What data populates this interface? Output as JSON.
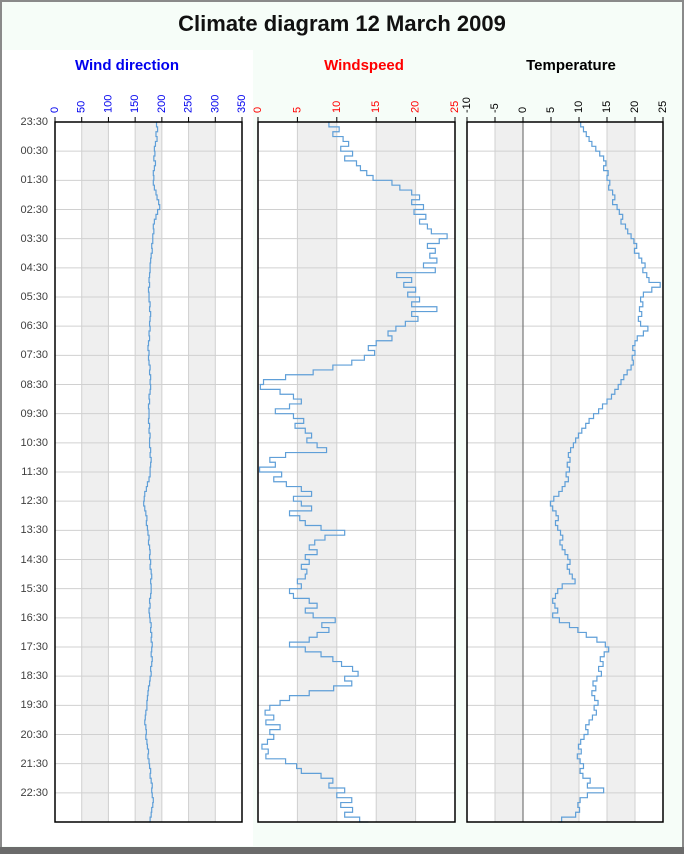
{
  "page": {
    "title": "Climate diagram 12 March 2009",
    "background_color": "#f6fdf8",
    "frame_color": "#8a8a8a",
    "bottom_bar_color": "#6b6b6b"
  },
  "style": {
    "line_color": "#5f9fd8",
    "grid_color": "#d0d0d0",
    "band_color": "#efefef",
    "plot_background": "#ffffff",
    "plot_border_color": "#000000",
    "zero_line_color": "#787878",
    "time_label_color": "#3f3f3f"
  },
  "time_axis": {
    "labels": [
      "23:30",
      "00:30",
      "01:30",
      "02:30",
      "03:30",
      "04:30",
      "05:30",
      "06:30",
      "07:30",
      "08:30",
      "09:30",
      "10:30",
      "11:30",
      "12:30",
      "13:30",
      "14:30",
      "15:30",
      "16:30",
      "17:30",
      "18:30",
      "19:30",
      "20:30",
      "21:30",
      "22:30"
    ],
    "span_hours": 24,
    "start": "23:30",
    "end": "23:30",
    "sample_interval_minutes": 10
  },
  "chart_data": [
    {
      "type": "line",
      "id": "wind-direction",
      "title": "Wind direction",
      "color": "#0000ee",
      "xlim": [
        0,
        350
      ],
      "xticks": [
        0,
        50,
        100,
        150,
        200,
        250,
        300,
        350
      ],
      "xtick_labels": [
        "0",
        "50",
        "100",
        "150",
        "200",
        "250",
        "300",
        "350"
      ],
      "zero_line": false,
      "orientation": "time-vertical",
      "values": [
        190,
        192,
        189,
        191,
        188,
        186,
        187,
        185,
        188,
        186,
        184,
        185,
        184,
        186,
        189,
        191,
        194,
        196,
        192,
        189,
        186,
        184,
        185,
        183,
        183,
        181,
        182,
        180,
        179,
        178,
        178,
        177,
        176,
        177,
        175,
        176,
        176,
        178,
        177,
        179,
        178,
        177,
        178,
        176,
        177,
        175,
        174,
        176,
        175,
        176,
        178,
        177,
        179,
        178,
        179,
        178,
        176,
        177,
        175,
        176,
        176,
        175,
        177,
        176,
        178,
        177,
        177,
        179,
        178,
        180,
        179,
        178,
        178,
        176,
        173,
        171,
        168,
        167,
        166,
        168,
        170,
        172,
        171,
        173,
        174,
        176,
        175,
        177,
        178,
        177,
        179,
        178,
        180,
        181,
        179,
        180,
        180,
        179,
        177,
        178,
        176,
        177,
        178,
        180,
        179,
        181,
        180,
        182,
        181,
        180,
        182,
        181,
        179,
        180,
        178,
        177,
        175,
        174,
        173,
        172,
        172,
        170,
        169,
        168,
        170,
        171,
        170,
        172,
        173,
        175,
        174,
        176,
        177,
        179,
        178,
        180,
        182,
        181,
        182,
        184,
        183,
        181,
        180,
        178,
        179
      ]
    },
    {
      "type": "line",
      "id": "windspeed",
      "title": "Windspeed",
      "color": "#ff0000",
      "xlim": [
        0,
        25
      ],
      "xticks": [
        0,
        5,
        10,
        15,
        20,
        25
      ],
      "xtick_labels": [
        "0",
        "5",
        "10",
        "15",
        "20",
        "25"
      ],
      "zero_line": false,
      "orientation": "time-vertical",
      "values": [
        9,
        10.3,
        9.5,
        10.8,
        11.5,
        10.5,
        12,
        11,
        12.5,
        13,
        13.8,
        14.6,
        17,
        18,
        19.5,
        20.5,
        19.5,
        21,
        19.8,
        21.3,
        20.5,
        21.5,
        22,
        24,
        23,
        21.5,
        22.5,
        21.8,
        22.7,
        21,
        22.5,
        17.6,
        19.5,
        18.5,
        20,
        19,
        20.5,
        19.5,
        22.7,
        19.5,
        20.3,
        18.7,
        17.5,
        16.5,
        17,
        15,
        14,
        14.8,
        13.5,
        11.9,
        9.5,
        7,
        3.5,
        0.7,
        0.3,
        2.8,
        4.5,
        5.5,
        4,
        2.2,
        4.5,
        5.8,
        4.7,
        6,
        6.8,
        6.2,
        7.5,
        8.7,
        3.5,
        1.5,
        2.2,
        0.2,
        3,
        2,
        3.6,
        5.5,
        6.8,
        4.5,
        5.5,
        6.8,
        4,
        5.3,
        6,
        8,
        11,
        8.5,
        7.2,
        6.5,
        7.5,
        6,
        6.5,
        5.5,
        6.2,
        6,
        5,
        5.5,
        4,
        4.5,
        6.5,
        7.5,
        6,
        7,
        9.8,
        8.1,
        9,
        7.5,
        6.5,
        4,
        6,
        8,
        9.5,
        10.6,
        12,
        12.7,
        11,
        11.9,
        9.6,
        6.5,
        4,
        2.8,
        1.5,
        0.9,
        2,
        1,
        2.8,
        1.5,
        2,
        1.2,
        0.5,
        1.3,
        1,
        3.5,
        4.9,
        5.5,
        8,
        9.5,
        9,
        11,
        10,
        11.9,
        10.5,
        12,
        11,
        12.9,
        14
      ]
    },
    {
      "type": "line",
      "id": "temperature",
      "title": "Temperature",
      "color": "#000000",
      "xlim": [
        -10,
        25
      ],
      "xticks": [
        -10,
        -5,
        0,
        5,
        10,
        15,
        20,
        25
      ],
      "xtick_labels": [
        "-10",
        "-5",
        "0",
        "5",
        "10",
        "15",
        "20",
        "25"
      ],
      "zero_line": true,
      "orientation": "time-vertical",
      "values": [
        10.3,
        10.8,
        11.3,
        11.8,
        12.3,
        13,
        13.7,
        14.4,
        14.8,
        14.4,
        15.2,
        15,
        15.5,
        15.3,
        16,
        16.4,
        16,
        16.8,
        17.2,
        17.8,
        17.5,
        18.3,
        18.7,
        19.3,
        19.8,
        20.3,
        19.9,
        20.7,
        21.2,
        21.8,
        21.4,
        22.1,
        22.5,
        24.5,
        23,
        21.5,
        21,
        21.4,
        20.8,
        21.2,
        20.6,
        21,
        22.3,
        21.5,
        20.4,
        20,
        19.6,
        20,
        19.5,
        19.7,
        19.3,
        18.6,
        18,
        17.5,
        17,
        16.4,
        15.8,
        15,
        14.2,
        13.5,
        12.6,
        11.8,
        11.2,
        10.5,
        9.9,
        9.4,
        9,
        8.5,
        8.1,
        8.4,
        7.9,
        8.3,
        7.7,
        8.1,
        7.5,
        7,
        6.4,
        5.5,
        4.9,
        5.3,
        5.9,
        6.3,
        5.8,
        6.2,
        6.7,
        7.1,
        6.6,
        7,
        7.5,
        8,
        8.4,
        7.9,
        8.3,
        8.8,
        9.3,
        7,
        6.2,
        5.8,
        5.3,
        5.7,
        6.2,
        5.3,
        6.5,
        8.3,
        9.8,
        11.3,
        13.2,
        14.7,
        15.3,
        14.5,
        13.8,
        14.3,
        13.5,
        14,
        13.2,
        12.5,
        13,
        12.3,
        12.8,
        13.4,
        12.7,
        13.1,
        12.4,
        11.8,
        11.2,
        11.6,
        10.9,
        10.3,
        9.9,
        10.4,
        9.7,
        10.2,
        10.8,
        10.2,
        10.7,
        12,
        11.5,
        14.4,
        11.5,
        10.2,
        9.8,
        10.1,
        9.4,
        6.9,
        6.3
      ]
    }
  ]
}
